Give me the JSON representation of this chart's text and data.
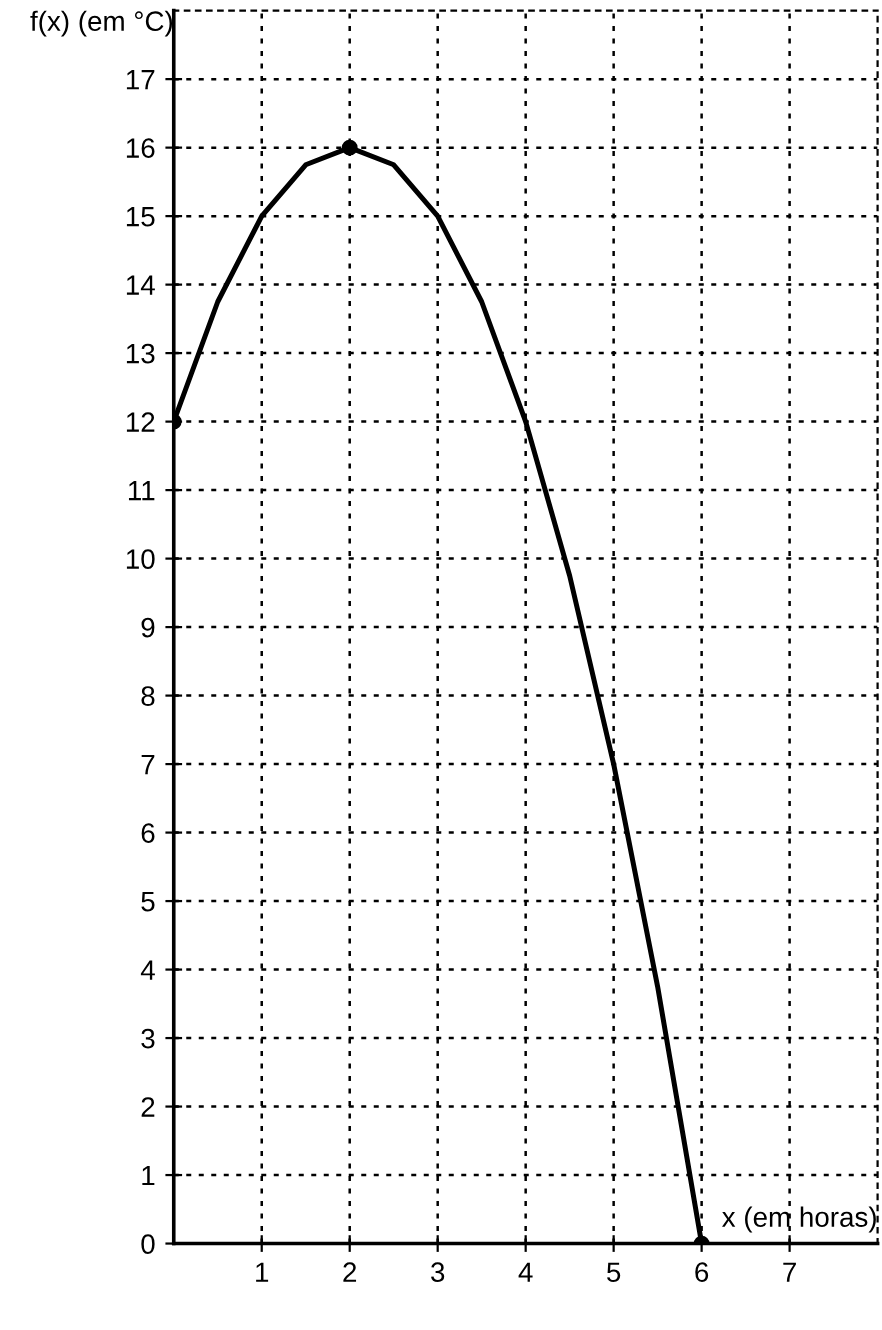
{
  "chart_data": {
    "type": "line",
    "xlabel": "x (em horas)",
    "ylabel": "f(x) (em °C)",
    "xlim": [
      0,
      8
    ],
    "ylim": [
      0,
      18
    ],
    "xticks": [
      1,
      2,
      3,
      4,
      5,
      6,
      7
    ],
    "yticks": [
      0,
      1,
      2,
      3,
      4,
      5,
      6,
      7,
      8,
      9,
      10,
      11,
      12,
      13,
      14,
      15,
      16,
      17
    ],
    "grid": true,
    "line_style": "solid",
    "series": [
      {
        "color": "#000000",
        "marker": "none",
        "x": [
          0,
          0.5,
          1,
          1.5,
          2,
          2.5,
          3,
          3.5,
          4,
          4.5,
          5,
          5.5,
          6
        ],
        "values": [
          12,
          13.75,
          15,
          15.75,
          16,
          15.75,
          15,
          13.75,
          12,
          9.75,
          7,
          3.75,
          0
        ]
      },
      {
        "type": "scatter",
        "color": "#000000",
        "marker": "circle",
        "x": [
          0,
          2,
          6
        ],
        "values": [
          12,
          16,
          0
        ]
      }
    ]
  }
}
